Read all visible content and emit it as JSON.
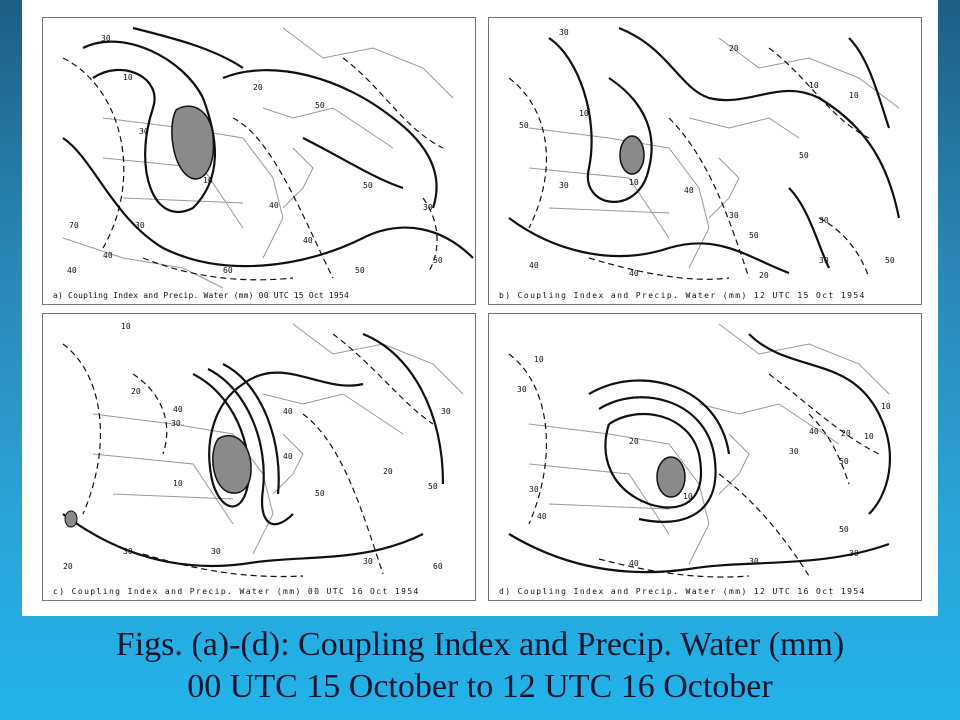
{
  "panels": [
    {
      "id": "a",
      "caption": "a) Coupling Index and Precip. Water (mm) 00 UTC 15 Oct 1954",
      "contour_labels": [
        "30",
        "10",
        "20",
        "50",
        "30",
        "40",
        "10",
        "50",
        "40",
        "60",
        "50",
        "50",
        "40",
        "30",
        "30",
        "40",
        "70"
      ]
    },
    {
      "id": "b",
      "caption": "b) Coupling Index and Precip. Water (mm) 12 UTC 15 Oct 1954",
      "contour_labels": [
        "30",
        "20",
        "10",
        "50",
        "10",
        "40",
        "30",
        "10",
        "30",
        "50",
        "50",
        "30",
        "40",
        "30",
        "50",
        "40",
        "10",
        "20"
      ]
    },
    {
      "id": "c",
      "caption": "c) Coupling Index and Precip. Water (mm) 00 UTC 16 Oct 1954",
      "contour_labels": [
        "10",
        "20",
        "30",
        "40",
        "40",
        "30",
        "20",
        "50",
        "40",
        "30",
        "30",
        "30",
        "50",
        "60",
        "10",
        "20"
      ]
    },
    {
      "id": "d",
      "caption": "d) Coupling Index and Precip. Water (mm) 12 UTC 16 Oct 1954",
      "contour_labels": [
        "30",
        "10",
        "30",
        "20",
        "10",
        "50",
        "40",
        "30",
        "10",
        "40",
        "20",
        "10",
        "50",
        "30",
        "40",
        "30"
      ]
    }
  ],
  "caption": {
    "line1": "Figs. (a)-(d): Coupling Index and Precip. Water (mm)",
    "line2": "00 UTC 15 October to 12 UTC 16 October"
  },
  "colors": {
    "background_top": "#1e5f86",
    "background_bottom": "#22b3ea",
    "shaded_region": "#8a8a8a"
  }
}
